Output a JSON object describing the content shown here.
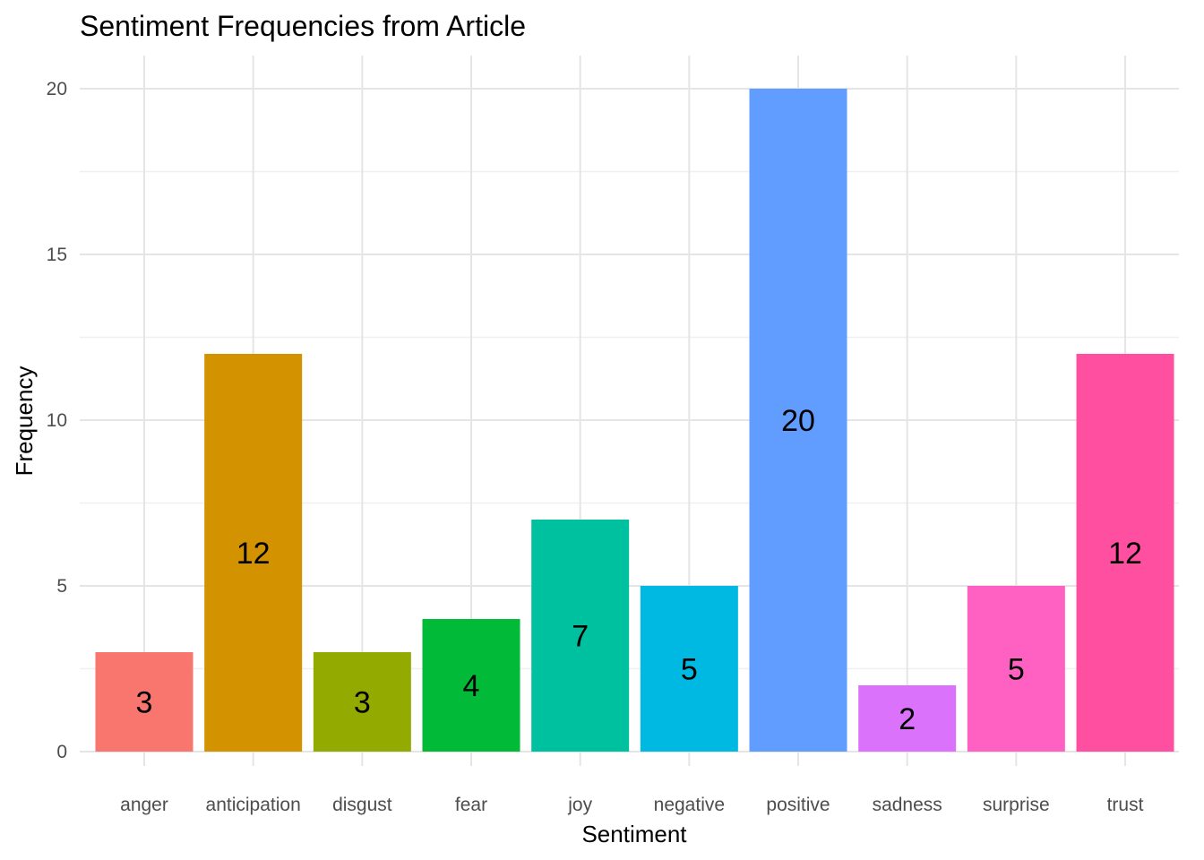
{
  "chart_data": {
    "type": "bar",
    "title": "Sentiment Frequencies from Article",
    "xlabel": "Sentiment",
    "ylabel": "Frequency",
    "categories": [
      "anger",
      "anticipation",
      "disgust",
      "fear",
      "joy",
      "negative",
      "positive",
      "sadness",
      "surprise",
      "trust"
    ],
    "values": [
      3,
      12,
      3,
      4,
      7,
      5,
      20,
      2,
      5,
      12
    ],
    "colors": [
      "#F8766D",
      "#D39200",
      "#93AA00",
      "#00BA38",
      "#00C19F",
      "#00B9E3",
      "#619CFF",
      "#DB72FB",
      "#FF61C3",
      "#FF4FA1"
    ],
    "ylim": [
      0,
      21
    ],
    "yticks": [
      0,
      5,
      10,
      15,
      20
    ],
    "grid": true,
    "legend": "none"
  }
}
